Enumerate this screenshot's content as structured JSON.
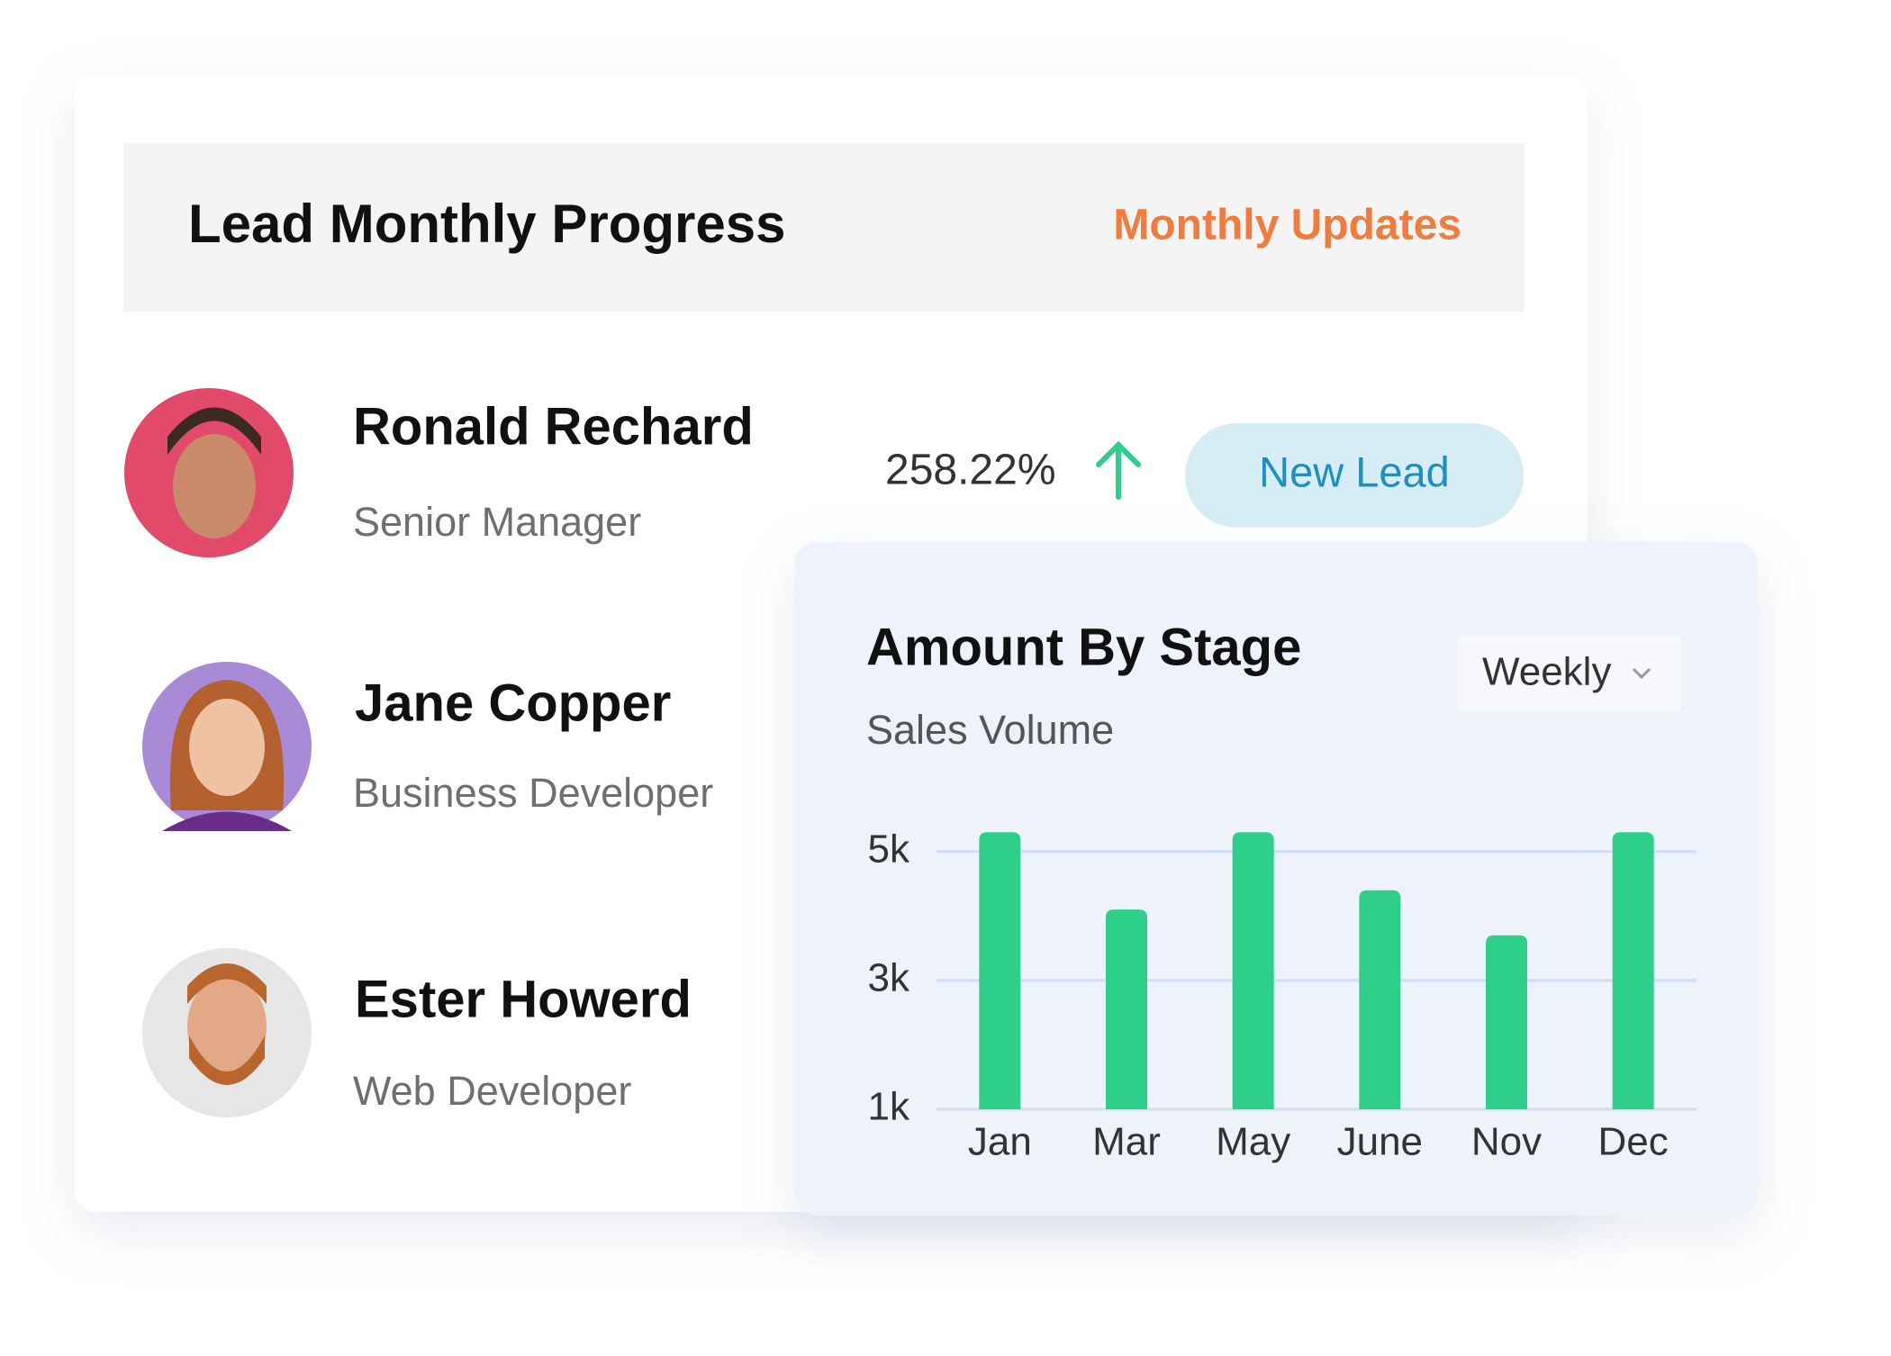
{
  "header": {
    "title": "Lead Monthly Progress",
    "link": "Monthly Updates"
  },
  "people": [
    {
      "name": "Ronald Rechard",
      "role": "Senior Manager"
    },
    {
      "name": "Jane Copper",
      "role": "Business Developer"
    },
    {
      "name": "Ester Howerd",
      "role": "Web Developer"
    }
  ],
  "stat": "258.22%",
  "badge": "New Lead",
  "dropdown": "Weekly",
  "chart_data": {
    "type": "bar",
    "title": "Amount By Stage",
    "subtitle": "Sales Volume",
    "categories": [
      "Jan",
      "Mar",
      "May",
      "June",
      "Nov",
      "Dec"
    ],
    "values": [
      5300,
      4100,
      5300,
      4400,
      3700,
      5300
    ],
    "color": "#2ecf8a",
    "ylim": [
      1000,
      5500
    ],
    "yticks": [
      {
        "value": 1000,
        "label": "1k"
      },
      {
        "value": 3000,
        "label": "3k"
      },
      {
        "value": 5000,
        "label": "5k"
      }
    ],
    "grid": true
  }
}
